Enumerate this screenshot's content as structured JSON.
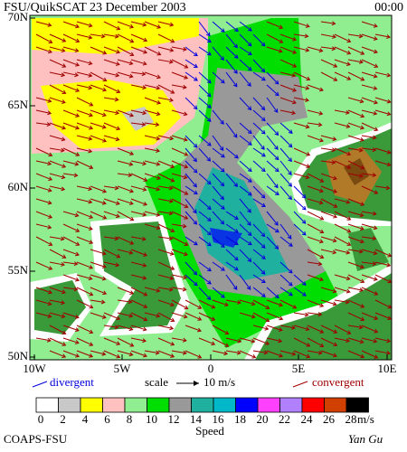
{
  "header": {
    "title": "FSU/QuikSCAT 23 December 2003",
    "time": "00:00"
  },
  "map": {
    "lat_labels": [
      "70N",
      "65N",
      "60N",
      "55N",
      "50N"
    ],
    "lon_labels": [
      "10W",
      "5W",
      "0",
      "5E",
      "10E"
    ]
  },
  "legend": {
    "divergent": "divergent",
    "scale": "scale",
    "scale_value": "10 m/s",
    "convergent": "convergent"
  },
  "colorbar": {
    "labels": [
      "0",
      "2",
      "4",
      "6",
      "8",
      "10",
      "12",
      "14",
      "16",
      "18",
      "20",
      "22",
      "24",
      "26",
      "28"
    ],
    "colors": [
      "#ffffff",
      "#c8c8c8",
      "#ffff00",
      "#ffc0c0",
      "#90ee90",
      "#00dd00",
      "#999999",
      "#20b0a0",
      "#00b8c8",
      "#0000ff",
      "#ff40ff",
      "#b080ff",
      "#ff0000",
      "#d04000",
      "#000000"
    ],
    "unit": "m/s",
    "title": "Speed"
  },
  "footer": {
    "left": "COAPS-FSU",
    "right": "Yan Gu"
  }
}
